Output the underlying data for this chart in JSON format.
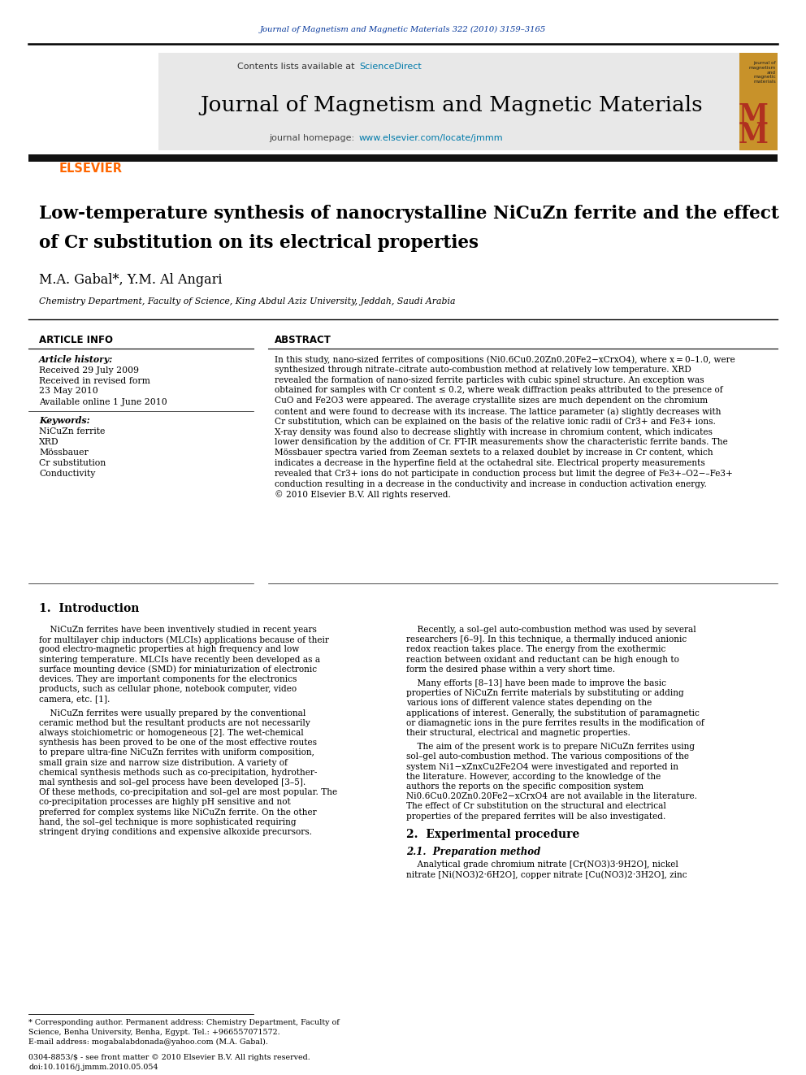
{
  "page_width": 9.92,
  "page_height": 13.23,
  "bg_color": "#ffffff",
  "top_journal_line": "Journal of Magnetism and Magnetic Materials 322 (2010) 3159–3165",
  "journal_name": "Journal of Magnetism and Magnetic Materials",
  "contents_line_plain": "Contents lists available at ",
  "contents_line_link": "ScienceDirect",
  "journal_homepage_plain": "journal homepage: ",
  "journal_homepage_link": "www.elsevier.com/locate/jmmm",
  "paper_title_line1": "Low-temperature synthesis of nanocrystalline NiCuZn ferrite and the effect",
  "paper_title_line2": "of Cr substitution on its electrical properties",
  "authors": "M.A. Gabal*, Y.M. Al Angari",
  "affiliation": "Chemistry Department, Faculty of Science, King Abdul Aziz University, Jeddah, Saudi Arabia",
  "article_info_title": "ARTICLE INFO",
  "abstract_title": "ABSTRACT",
  "article_history_label": "Article history:",
  "received_line1": "Received 29 July 2009",
  "received_line2": "Received in revised form",
  "received_line3": "23 May 2010",
  "available_line": "Available online 1 June 2010",
  "keywords_label": "Keywords:",
  "keyword1": "NiCuZn ferrite",
  "keyword2": "XRD",
  "keyword3": "Mössbauer",
  "keyword4": "Cr substitution",
  "keyword5": "Conductivity",
  "abstract_text": "In this study, nano-sized ferrites of compositions (Ni0.6Cu0.20Zn0.20Fe2−xCrxO4), where x = 0–1.0, were\nsynthesized through nitrate–citrate auto-combustion method at relatively low temperature. XRD\nrevealed the formation of nano-sized ferrite particles with cubic spinel structure. An exception was\nobtained for samples with Cr content ≤ 0.2, where weak diffraction peaks attributed to the presence of\nCuO and Fe2O3 were appeared. The average crystallite sizes are much dependent on the chromium\ncontent and were found to decrease with its increase. The lattice parameter (a) slightly decreases with\nCr substitution, which can be explained on the basis of the relative ionic radii of Cr3+ and Fe3+ ions.\nX-ray density was found also to decrease slightly with increase in chromium content, which indicates\nlower densification by the addition of Cr. FT-IR measurements show the characteristic ferrite bands. The\nMössbauer spectra varied from Zeeman sextets to a relaxed doublet by increase in Cr content, which\nindicates a decrease in the hyperfine field at the octahedral site. Electrical property measurements\nrevealed that Cr3+ ions do not participate in conduction process but limit the degree of Fe3+–O2−–Fe3+\nconduction resulting in a decrease in the conductivity and increase in conduction activation energy.\n© 2010 Elsevier B.V. All rights reserved.",
  "section1_title": "1.  Introduction",
  "intro_col1_para1": "    NiCuZn ferrites have been inventively studied in recent years\nfor multilayer chip inductors (MLCIs) applications because of their\ngood electro-magnetic properties at high frequency and low\nsintering temperature. MLCIs have recently been developed as a\nsurface mounting device (SMD) for miniaturization of electronic\ndevices. They are important components for the electronics\nproducts, such as cellular phone, notebook computer, video\ncamera, etc. [1].",
  "intro_col1_para2": "    NiCuZn ferrites were usually prepared by the conventional\nceramic method but the resultant products are not necessarily\nalways stoichiometric or homogeneous [2]. The wet-chemical\nsynthesis has been proved to be one of the most effective routes\nto prepare ultra-fine NiCuZn ferrites with uniform composition,\nsmall grain size and narrow size distribution. A variety of\nchemical synthesis methods such as co-precipitation, hydrother-\nmal synthesis and sol–gel process have been developed [3–5].\nOf these methods, co-precipitation and sol–gel are most popular. The\nco-precipitation processes are highly pH sensitive and not\npreferred for complex systems like NiCuZn ferrite. On the other\nhand, the sol–gel technique is more sophisticated requiring\nstringent drying conditions and expensive alkoxide precursors.",
  "intro_col2_para1": "    Recently, a sol–gel auto-combustion method was used by several\nresearchers [6–9]. In this technique, a thermally induced anionic\nredox reaction takes place. The energy from the exothermic\nreaction between oxidant and reductant can be high enough to\nform the desired phase within a very short time.",
  "intro_col2_para2": "    Many efforts [8–13] have been made to improve the basic\nproperties of NiCuZn ferrite materials by substituting or adding\nvarious ions of different valence states depending on the\napplications of interest. Generally, the substitution of paramagnetic\nor diamagnetic ions in the pure ferrites results in the modification of\ntheir structural, electrical and magnetic properties.",
  "intro_col2_para3": "    The aim of the present work is to prepare NiCuZn ferrites using\nsol–gel auto-combustion method. The various compositions of the\nsystem Ni1−xZnxCu2Fe2O4 were investigated and reported in\nthe literature. However, according to the knowledge of the\nauthors the reports on the specific composition system\nNi0.6Cu0.20Zn0.20Fe2−xCrxO4 are not available in the literature.\nThe effect of Cr substitution on the structural and electrical\nproperties of the prepared ferrites will be also investigated.",
  "section2_title": "2.  Experimental procedure",
  "section21_title": "2.1.  Preparation method",
  "exp_text": "    Analytical grade chromium nitrate [Cr(NO3)3·9H2O], nickel\nnitrate [Ni(NO3)2·6H2O], copper nitrate [Cu(NO3)2·3H2O], zinc",
  "footnote_star_line1": "* Corresponding author. Permanent address: Chemistry Department, Faculty of",
  "footnote_star_line2": "Science, Benha University, Benha, Egypt. Tel.: +966557071572.",
  "footnote_email": "E-mail address: mogabalabdonada@yahoo.com (M.A. Gabal).",
  "issn_line": "0304-8853/$ - see front matter © 2010 Elsevier B.V. All rights reserved.",
  "doi_line": "doi:10.1016/j.jmmm.2010.05.054",
  "header_color": "#003399",
  "elsevier_color": "#FF6600",
  "sciencedirect_color": "#007AAA",
  "homepage_color": "#007AAA",
  "journal_ref_color": "#003399",
  "header_bg": "#e8e8e8",
  "black_bar_color": "#111111",
  "mm_logo_bg": "#C8922A",
  "mm_logo_color": "#B03020"
}
